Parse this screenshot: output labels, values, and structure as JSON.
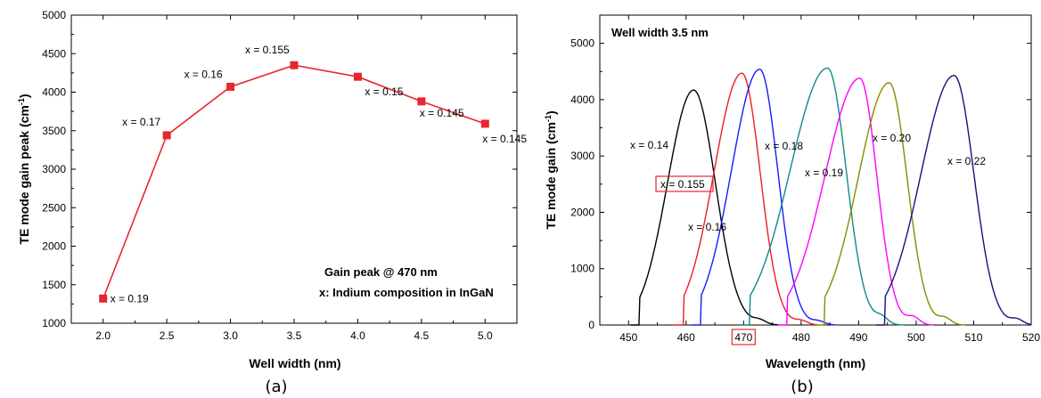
{
  "chart_data": [
    {
      "type": "line",
      "caption": "(a)",
      "xlabel": "Well width (nm)",
      "ylabel": "TE mode gain peak (cm",
      "ylabel_sup": "-1",
      "ylabel_end": ")",
      "xlim": [
        1.75,
        5.25
      ],
      "ylim": [
        1000,
        5000
      ],
      "xticks": [
        "2.0",
        "2.5",
        "3.0",
        "3.5",
        "4.0",
        "4.5",
        "5.0"
      ],
      "yticks": [
        "1000",
        "1500",
        "2000",
        "2500",
        "3000",
        "3500",
        "4000",
        "4500",
        "5000"
      ],
      "x": [
        2.0,
        2.5,
        3.0,
        3.5,
        4.0,
        4.5,
        5.0
      ],
      "y": [
        1320,
        3440,
        4070,
        4350,
        4200,
        3880,
        3590
      ],
      "point_labels": [
        "x = 0.19",
        "x = 0.17",
        "x = 0.16",
        "x = 0.155",
        "x = 0.15",
        "x = 0.145",
        "x = 0.145"
      ],
      "notes": [
        "Gain peak @ 470 nm",
        "x: Indium composition in InGaN"
      ],
      "color": "#e8262e",
      "marker": "square",
      "grid": false
    },
    {
      "type": "line",
      "caption": "(b)",
      "xlabel": "Wavelength (nm)",
      "ylabel": "TE mode gain (cm",
      "ylabel_sup": "-1",
      "ylabel_end": ")",
      "xlim": [
        445,
        520
      ],
      "ylim": [
        0,
        5500
      ],
      "xticks": [
        "450",
        "460",
        "470",
        "480",
        "490",
        "500",
        "510",
        "520"
      ],
      "yticks": [
        "0",
        "1000",
        "2000",
        "3000",
        "4000",
        "5000"
      ],
      "title_box": "Well width 3.5 nm",
      "highlight_tick": "470",
      "highlight_color": "#e8262e",
      "grid": false,
      "series": [
        {
          "label": "x = 0.14",
          "color": "#000000",
          "peak_x": 461.3,
          "peak_y": 4170,
          "start_x": 451.8,
          "end_x": 470.0,
          "bump_x": 472.8,
          "bump_y": 70
        },
        {
          "label": "x = 0.155",
          "color": "#ee1c24",
          "boxed": true,
          "peak_x": 469.7,
          "peak_y": 4470,
          "start_x": 459.5,
          "end_x": 477.0,
          "bump_x": 480.0,
          "bump_y": 70
        },
        {
          "label": "x = 0.16",
          "color": "#1a1aff",
          "peak_x": 472.8,
          "peak_y": 4540,
          "start_x": 462.5,
          "end_x": 480.0,
          "bump_x": 483.0,
          "bump_y": 60
        },
        {
          "label": "x = 0.18",
          "color": "#0f8a8a",
          "peak_x": 484.6,
          "peak_y": 4560,
          "start_x": 471.0,
          "end_x": 492.0,
          "bump_x": 494.0,
          "bump_y": 120
        },
        {
          "label": "x = 0.19",
          "color": "#ff00ff",
          "peak_x": 490.2,
          "peak_y": 4380,
          "start_x": 477.5,
          "end_x": 497.0,
          "bump_x": 499.5,
          "bump_y": 130
        },
        {
          "label": "x = 0.20",
          "color": "#8a8a00",
          "peak_x": 495.3,
          "peak_y": 4300,
          "start_x": 484.0,
          "end_x": 502.5,
          "bump_x": 505.0,
          "bump_y": 110
        },
        {
          "label": "x = 0.22",
          "color": "#14147a",
          "peak_x": 506.6,
          "peak_y": 4430,
          "start_x": 494.5,
          "end_x": 514.5,
          "bump_x": 517.5,
          "bump_y": 90
        }
      ]
    }
  ]
}
